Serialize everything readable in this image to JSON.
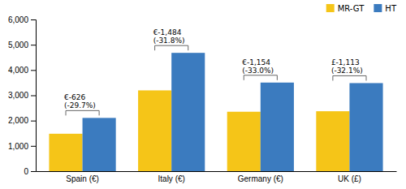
{
  "chart_data": {
    "type": "bar",
    "categories": [
      "Spain (€)",
      "Italy (€)",
      "Germany (€)",
      "UK (£)"
    ],
    "series": [
      {
        "name": "MR-GT",
        "color": "#F5C518",
        "values": [
          1480,
          3195,
          2350,
          2370
        ]
      },
      {
        "name": "HT",
        "color": "#3B7BBF",
        "values": [
          2106,
          4679,
          3504,
          3483
        ]
      }
    ],
    "annotations": [
      "€-626\n(-29.7%)",
      "€-1,484\n(-31.8%)",
      "€-1,154\n(-33.0%)",
      "£-1,113\n(-32.1%)"
    ],
    "ylim": [
      0,
      6000
    ],
    "yticks": [
      0,
      {
        "value": 1000,
        "label": "1,000"
      },
      {
        "value": 2000,
        "label": "2,000"
      },
      {
        "value": 3000,
        "label": "3,000"
      },
      {
        "value": 4000,
        "label": "4,000"
      },
      {
        "value": 5000,
        "label": "5,000"
      },
      {
        "value": 6000,
        "label": "6,000"
      }
    ],
    "legend": "upper right",
    "grid": false
  }
}
